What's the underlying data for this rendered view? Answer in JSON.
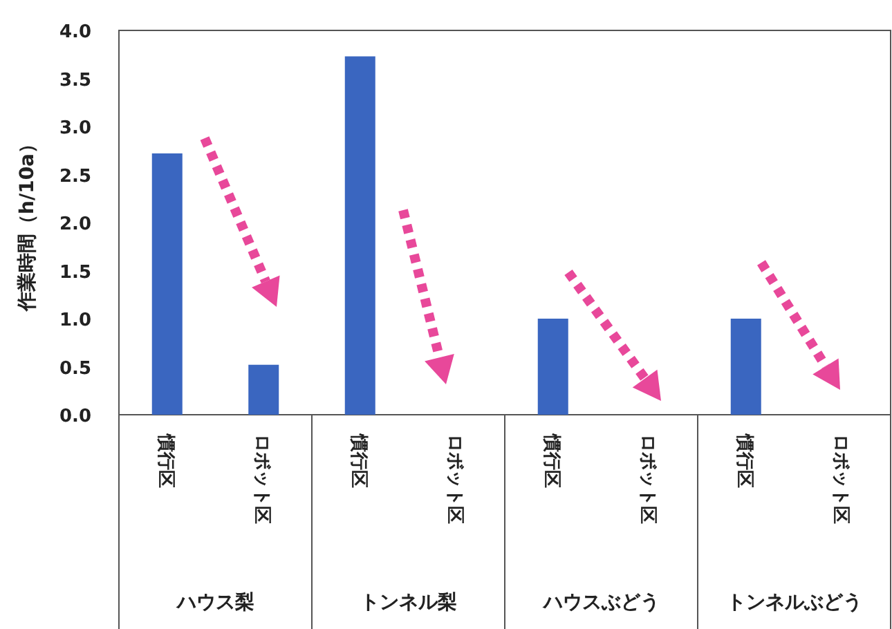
{
  "chart_data": {
    "type": "bar",
    "ylabel": "作業時間（h/10a）",
    "categories": [
      "慣行区",
      "ロボット区",
      "慣行区",
      "ロボット区",
      "慣行区",
      "ロボット区",
      "慣行区",
      "ロボット区"
    ],
    "values": [
      2.72,
      0.52,
      3.73,
      0,
      1.0,
      0,
      1.0,
      0
    ],
    "color": "#3a66c0",
    "ylim": [
      0,
      4
    ],
    "yticks": [
      {
        "value": 0,
        "label": "0.0"
      },
      {
        "value": 0.5,
        "label": "0.5"
      },
      {
        "value": 1,
        "label": "1.0"
      },
      {
        "value": 1.5,
        "label": "1.5"
      },
      {
        "value": 2,
        "label": "2.0"
      },
      {
        "value": 2.5,
        "label": "2.5"
      },
      {
        "value": 3,
        "label": "3.0"
      },
      {
        "value": 3.5,
        "label": "3.5"
      },
      {
        "value": 4,
        "label": "4.0"
      }
    ],
    "annotations": [
      "ハウス梨",
      "トンネル梨",
      "ハウスぶどう",
      "トンネルぶどう"
    ],
    "grid": false
  }
}
